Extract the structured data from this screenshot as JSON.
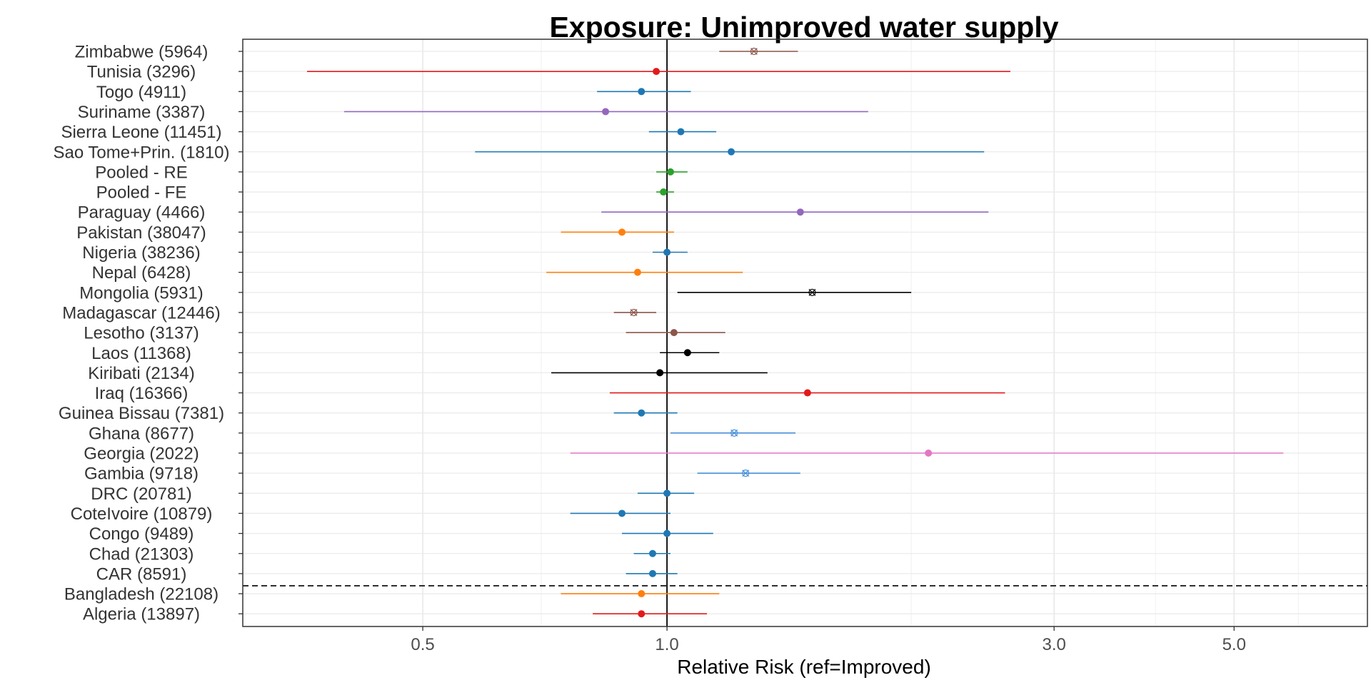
{
  "chart_data": {
    "type": "scatter",
    "subtype": "forest-plot",
    "title": "Exposure: Unimproved water supply",
    "xlabel": "Relative Risk (ref=Improved)",
    "ylabel": "",
    "x_scale": "log",
    "xlim": [
      0.3,
      7.3
    ],
    "x_ticks": [
      0.5,
      1.0,
      3.0,
      5.0
    ],
    "x_tick_labels": [
      "0.5",
      "1.0",
      "3.0",
      "5.0"
    ],
    "reference_line": 1.0,
    "separator_between": [
      "CAR (8591)",
      "Bangladesh (22108)"
    ],
    "grid": true,
    "colors": {
      "red": "#e31a1c",
      "blue": "#1f78b4",
      "purple": "#9467bd",
      "green": "#2ca02c",
      "orange": "#ff7f0e",
      "black": "#000000",
      "brown": "#8c564b",
      "pink": "#e377c2",
      "lightblue": "#4a90d9"
    },
    "rows": [
      {
        "label": "Zimbabwe (5964)",
        "rr": 1.28,
        "lo": 1.16,
        "hi": 1.45,
        "color": "#8c564b",
        "marker": "x"
      },
      {
        "label": "Tunisia (3296)",
        "rr": 0.97,
        "lo": 0.36,
        "hi": 2.65,
        "color": "#e31a1c",
        "marker": "dot"
      },
      {
        "label": "Togo (4911)",
        "rr": 0.93,
        "lo": 0.82,
        "hi": 1.07,
        "color": "#1f78b4",
        "marker": "dot"
      },
      {
        "label": "Suriname (3387)",
        "rr": 0.84,
        "lo": 0.4,
        "hi": 1.77,
        "color": "#9467bd",
        "marker": "dot"
      },
      {
        "label": "Sierra Leone (11451)",
        "rr": 1.04,
        "lo": 0.95,
        "hi": 1.15,
        "color": "#1f78b4",
        "marker": "dot"
      },
      {
        "label": "Sao Tome+Prin. (1810)",
        "rr": 1.2,
        "lo": 0.58,
        "hi": 2.46,
        "color": "#1f78b4",
        "marker": "dot"
      },
      {
        "label": "Pooled - RE",
        "rr": 1.01,
        "lo": 0.97,
        "hi": 1.06,
        "color": "#2ca02c",
        "marker": "dot"
      },
      {
        "label": "Pooled - FE",
        "rr": 0.99,
        "lo": 0.97,
        "hi": 1.02,
        "color": "#2ca02c",
        "marker": "dot"
      },
      {
        "label": "Paraguay (4466)",
        "rr": 1.46,
        "lo": 0.83,
        "hi": 2.49,
        "color": "#9467bd",
        "marker": "dot"
      },
      {
        "label": "Pakistan (38047)",
        "rr": 0.88,
        "lo": 0.74,
        "hi": 1.02,
        "color": "#ff7f0e",
        "marker": "dot"
      },
      {
        "label": "Nigeria (38236)",
        "rr": 1.0,
        "lo": 0.96,
        "hi": 1.06,
        "color": "#1f78b4",
        "marker": "dot"
      },
      {
        "label": "Nepal (6428)",
        "rr": 0.92,
        "lo": 0.71,
        "hi": 1.24,
        "color": "#ff7f0e",
        "marker": "dot"
      },
      {
        "label": "Mongolia (5931)",
        "rr": 1.51,
        "lo": 1.03,
        "hi": 2.0,
        "color": "#000000",
        "marker": "x"
      },
      {
        "label": "Madagascar (12446)",
        "rr": 0.91,
        "lo": 0.86,
        "hi": 0.97,
        "color": "#8c564b",
        "marker": "x"
      },
      {
        "label": "Lesotho (3137)",
        "rr": 1.02,
        "lo": 0.89,
        "hi": 1.18,
        "color": "#8c564b",
        "marker": "dot"
      },
      {
        "label": "Laos (11368)",
        "rr": 1.06,
        "lo": 0.98,
        "hi": 1.16,
        "color": "#000000",
        "marker": "dot"
      },
      {
        "label": "Kiribati (2134)",
        "rr": 0.98,
        "lo": 0.72,
        "hi": 1.33,
        "color": "#000000",
        "marker": "dot"
      },
      {
        "label": "Iraq (16366)",
        "rr": 1.49,
        "lo": 0.85,
        "hi": 2.61,
        "color": "#e31a1c",
        "marker": "dot"
      },
      {
        "label": "Guinea Bissau (7381)",
        "rr": 0.93,
        "lo": 0.86,
        "hi": 1.03,
        "color": "#1f78b4",
        "marker": "dot"
      },
      {
        "label": "Ghana (8677)",
        "rr": 1.21,
        "lo": 1.01,
        "hi": 1.44,
        "color": "#4a90d9",
        "marker": "x"
      },
      {
        "label": "Georgia (2022)",
        "rr": 2.1,
        "lo": 0.76,
        "hi": 5.75,
        "color": "#e377c2",
        "marker": "dot"
      },
      {
        "label": "Gambia (9718)",
        "rr": 1.25,
        "lo": 1.09,
        "hi": 1.46,
        "color": "#4a90d9",
        "marker": "x"
      },
      {
        "label": "DRC (20781)",
        "rr": 1.0,
        "lo": 0.92,
        "hi": 1.08,
        "color": "#1f78b4",
        "marker": "dot"
      },
      {
        "label": "CoteIvoire (10879)",
        "rr": 0.88,
        "lo": 0.76,
        "hi": 1.01,
        "color": "#1f78b4",
        "marker": "dot"
      },
      {
        "label": "Congo (9489)",
        "rr": 1.0,
        "lo": 0.88,
        "hi": 1.14,
        "color": "#1f78b4",
        "marker": "dot"
      },
      {
        "label": "Chad (21303)",
        "rr": 0.96,
        "lo": 0.91,
        "hi": 1.01,
        "color": "#1f78b4",
        "marker": "dot"
      },
      {
        "label": "CAR (8591)",
        "rr": 0.96,
        "lo": 0.89,
        "hi": 1.03,
        "color": "#1f78b4",
        "marker": "dot"
      },
      {
        "label": "Bangladesh (22108)",
        "rr": 0.93,
        "lo": 0.74,
        "hi": 1.16,
        "color": "#ff7f0e",
        "marker": "dot"
      },
      {
        "label": "Algeria (13897)",
        "rr": 0.93,
        "lo": 0.81,
        "hi": 1.12,
        "color": "#e31a1c",
        "marker": "dot"
      }
    ]
  }
}
